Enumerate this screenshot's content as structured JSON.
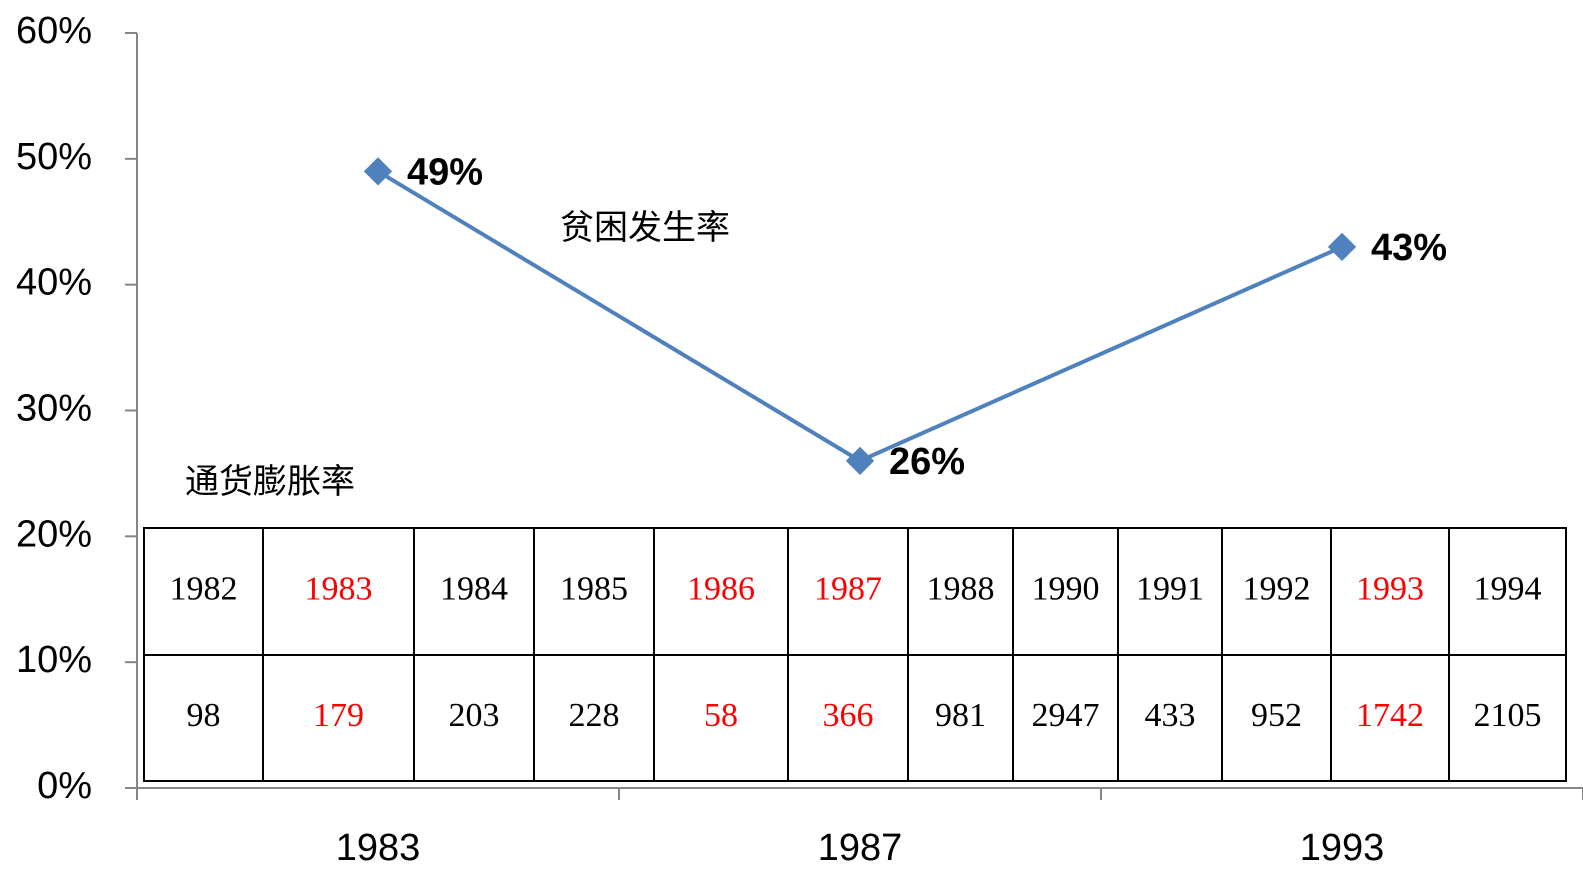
{
  "chart_data": {
    "type": "line",
    "categories": [
      "1983",
      "1987",
      "1993"
    ],
    "series": [
      {
        "name": "贫困发生率",
        "color": "#4f81bd",
        "values": [
          49,
          26,
          43
        ],
        "value_labels": [
          "49%",
          "26%",
          "43%"
        ]
      }
    ],
    "ylim": [
      0,
      60
    ],
    "yticks": [
      {
        "value": 0,
        "label": "0%"
      },
      {
        "value": 10,
        "label": "10%"
      },
      {
        "value": 20,
        "label": "20%"
      },
      {
        "value": 30,
        "label": "30%"
      },
      {
        "value": 40,
        "label": "40%"
      },
      {
        "value": 50,
        "label": "50%"
      },
      {
        "value": 60,
        "label": "60%"
      }
    ],
    "table": {
      "title": "通货膨胀率",
      "rows": [
        [
          "1982",
          "1983",
          "1984",
          "1985",
          "1986",
          "1987",
          "1988",
          "1990",
          "1991",
          "1992",
          "1993",
          "1994"
        ],
        [
          "98",
          "179",
          "203",
          "228",
          "58",
          "366",
          "981",
          "2947",
          "433",
          "952",
          "1742",
          "2105"
        ]
      ],
      "highlight_columns": [
        1,
        4,
        5,
        10
      ],
      "highlight_color": "#ff0000"
    }
  }
}
